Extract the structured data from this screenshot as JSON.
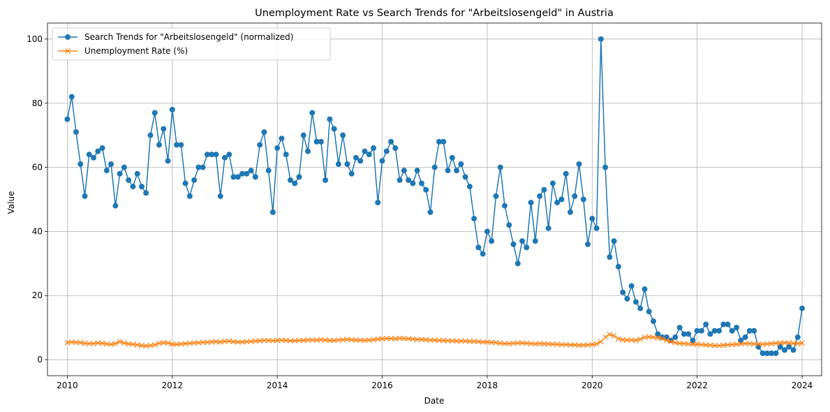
{
  "chart_data": {
    "type": "line",
    "title": "Unemployment Rate vs Search Trends for \"Arbeitslosengeld\" in Austria",
    "xlabel": "Date",
    "ylabel": "Value",
    "xlim": [
      "2009-08-15",
      "2024-05-15"
    ],
    "ylim": [
      -5,
      105
    ],
    "xticks": [
      "2010",
      "2012",
      "2014",
      "2016",
      "2018",
      "2020",
      "2022",
      "2024"
    ],
    "yticks": [
      0,
      20,
      40,
      60,
      80,
      100
    ],
    "grid": true,
    "legend_position": "top-left",
    "start_date": "2010-01",
    "frequency": "monthly",
    "series": [
      {
        "name": "Search Trends for \"Arbeitslosengeld\" (normalized)",
        "color": "#1f77b4",
        "marker": "circle",
        "values": [
          75,
          82,
          71,
          61,
          51,
          64,
          63,
          65,
          66,
          59,
          61,
          48,
          58,
          60,
          56,
          54,
          58,
          54,
          52,
          70,
          77,
          67,
          72,
          62,
          78,
          67,
          67,
          55,
          51,
          56,
          60,
          60,
          64,
          64,
          64,
          51,
          63,
          64,
          57,
          57,
          58,
          58,
          59,
          57,
          67,
          71,
          59,
          46,
          66,
          69,
          64,
          56,
          55,
          57,
          70,
          65,
          77,
          68,
          68,
          56,
          75,
          72,
          61,
          70,
          61,
          58,
          63,
          62,
          65,
          64,
          66,
          49,
          62,
          65,
          68,
          66,
          56,
          59,
          56,
          55,
          59,
          55,
          53,
          46,
          60,
          68,
          68,
          59,
          63,
          59,
          61,
          57,
          54,
          44,
          35,
          33,
          40,
          37,
          51,
          60,
          48,
          42,
          36,
          30,
          37,
          35,
          49,
          37,
          51,
          53,
          41,
          55,
          49,
          50,
          58,
          46,
          51,
          61,
          50,
          36,
          44,
          41,
          100,
          60,
          32,
          37,
          29,
          21,
          19,
          23,
          18,
          16,
          22,
          15,
          12,
          8,
          7,
          7,
          6,
          7,
          10,
          8,
          8,
          6,
          9,
          9,
          11,
          8,
          9,
          9,
          11,
          11,
          9,
          10,
          6,
          7,
          9,
          9,
          4,
          2,
          2,
          2,
          2,
          4,
          3,
          4,
          3,
          7,
          16
        ]
      },
      {
        "name": "Unemployment Rate (%)",
        "color": "#ff7f0e",
        "marker": "x",
        "values": [
          5.3,
          5.5,
          5.4,
          5.3,
          5.1,
          5.0,
          5.0,
          5.2,
          5.1,
          4.9,
          4.8,
          5.0,
          5.6,
          5.2,
          4.9,
          4.8,
          4.6,
          4.4,
          4.3,
          4.4,
          4.6,
          5.1,
          5.3,
          5.2,
          4.8,
          4.8,
          4.9,
          5.0,
          5.1,
          5.2,
          5.3,
          5.4,
          5.4,
          5.5,
          5.6,
          5.5,
          5.7,
          5.8,
          5.6,
          5.5,
          5.5,
          5.6,
          5.7,
          5.8,
          5.9,
          6.0,
          6.0,
          5.9,
          6.0,
          6.1,
          6.0,
          5.9,
          5.9,
          6.0,
          6.0,
          6.1,
          6.1,
          6.1,
          6.2,
          6.1,
          6.0,
          6.0,
          6.1,
          6.2,
          6.3,
          6.2,
          6.1,
          6.1,
          6.0,
          6.1,
          6.2,
          6.4,
          6.5,
          6.6,
          6.6,
          6.5,
          6.7,
          6.6,
          6.5,
          6.4,
          6.3,
          6.3,
          6.2,
          6.1,
          6.1,
          6.0,
          6.0,
          5.9,
          5.9,
          5.8,
          5.8,
          5.8,
          5.7,
          5.7,
          5.6,
          5.5,
          5.5,
          5.4,
          5.3,
          5.1,
          5.0,
          5.0,
          5.1,
          5.2,
          5.2,
          5.1,
          5.0,
          4.9,
          5.0,
          4.9,
          4.9,
          4.8,
          4.8,
          4.7,
          4.7,
          4.6,
          4.6,
          4.5,
          4.5,
          4.6,
          4.7,
          4.9,
          5.6,
          7.0,
          7.9,
          7.4,
          6.5,
          6.2,
          6.1,
          6.1,
          6.0,
          6.4,
          7.0,
          7.1,
          7.0,
          6.8,
          6.6,
          6.0,
          5.6,
          5.3,
          5.1,
          5.0,
          4.9,
          4.8,
          4.8,
          4.7,
          4.6,
          4.5,
          4.4,
          4.4,
          4.5,
          4.6,
          4.7,
          4.8,
          4.9,
          5.0,
          5.0,
          4.9,
          4.9,
          4.8,
          4.9,
          5.0,
          5.1,
          5.2,
          5.3,
          5.2,
          5.1,
          5.0,
          5.2
        ]
      }
    ]
  }
}
